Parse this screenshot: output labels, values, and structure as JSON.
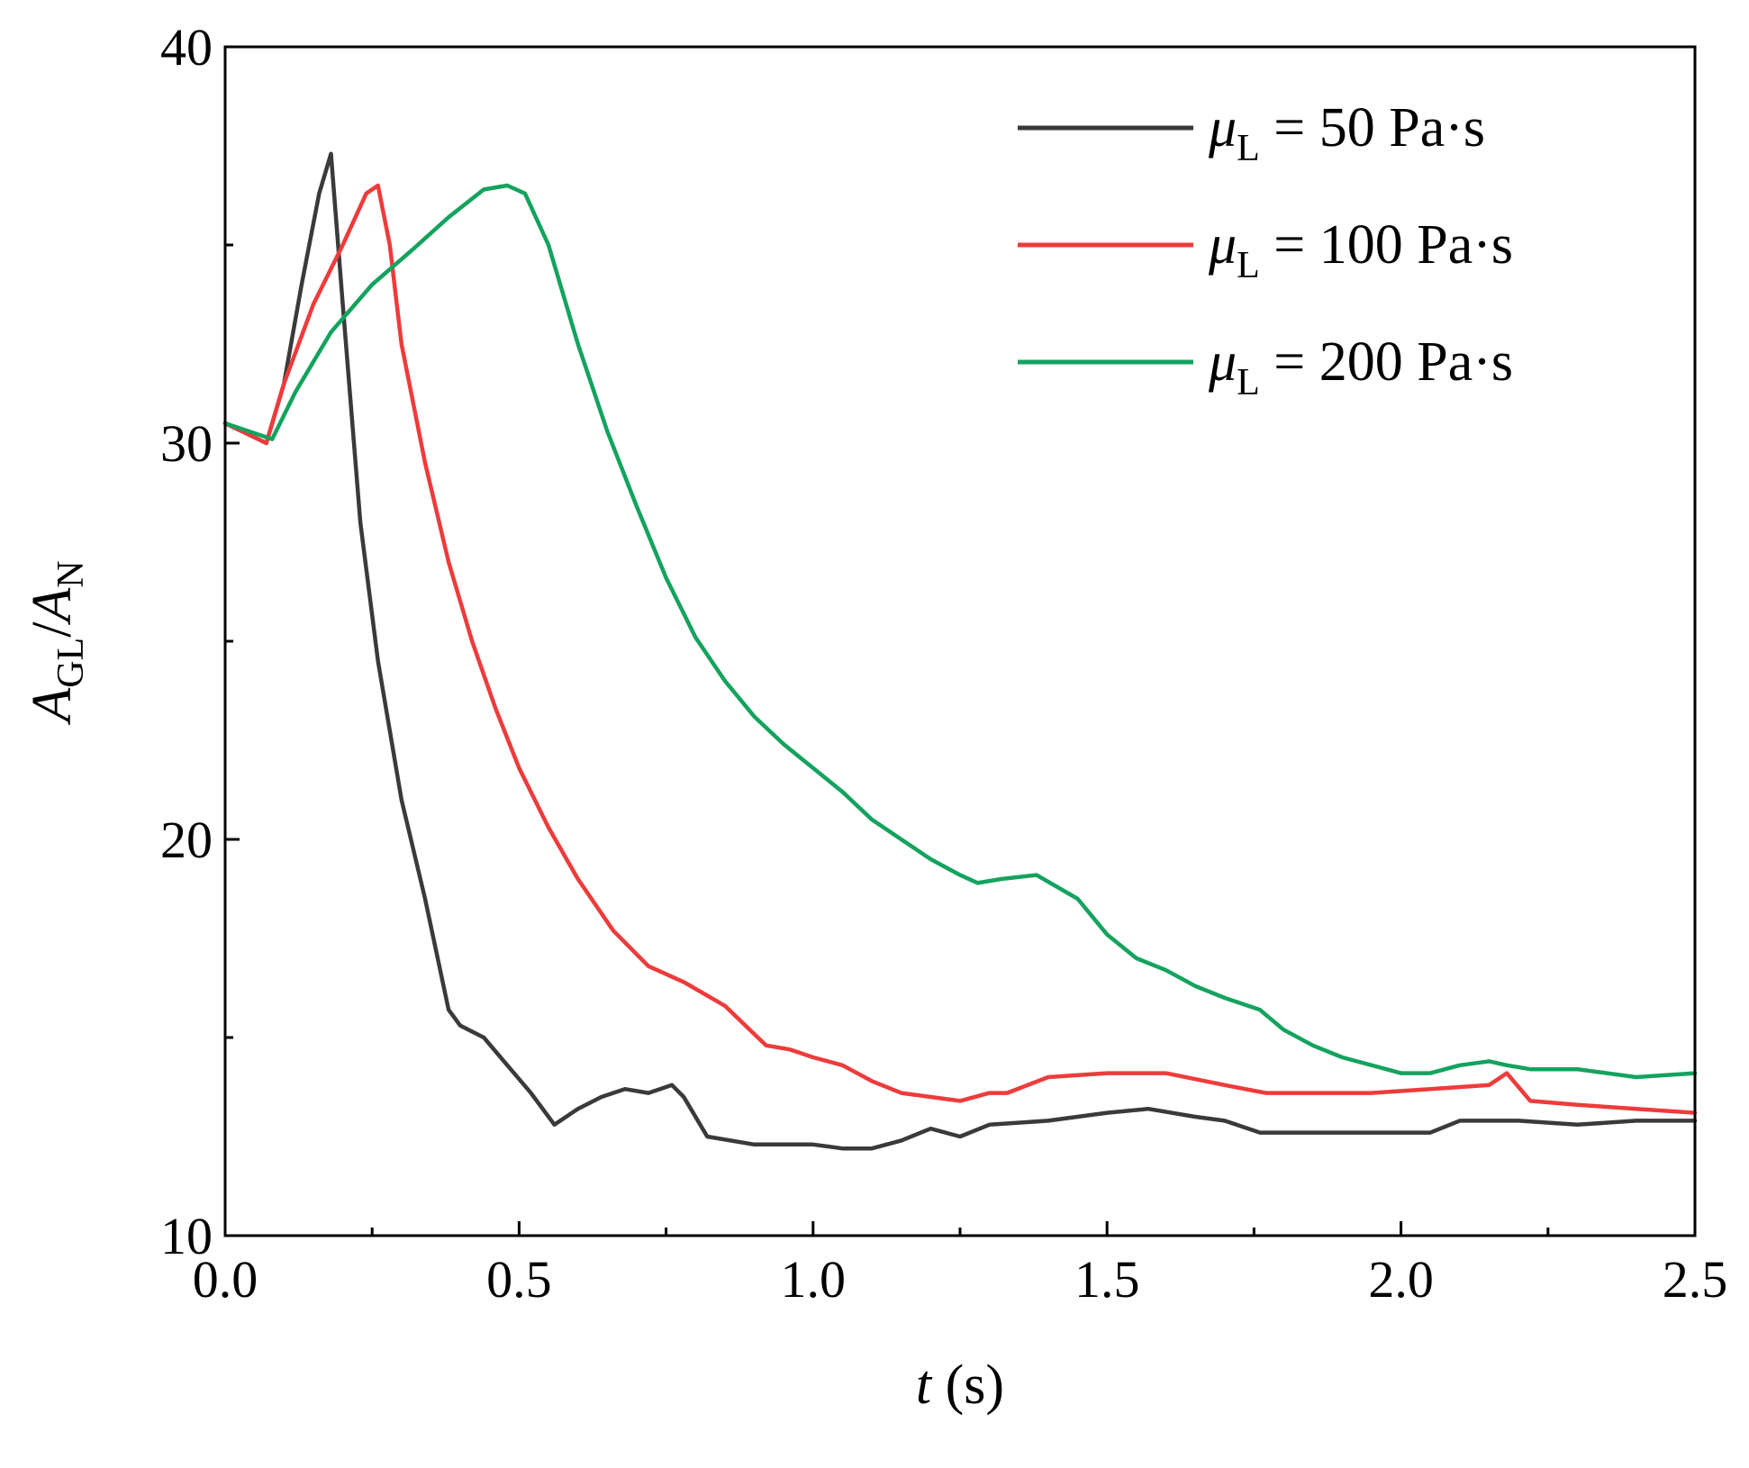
{
  "chart_data": {
    "type": "line",
    "title": "",
    "xlabel": {
      "var": "t",
      "unit": " (s)"
    },
    "ylabel": {
      "num_var": "A",
      "num_sub": "GL",
      "sep": "/",
      "den_var": "A",
      "den_sub": "N"
    },
    "xlim": [
      0,
      2.5
    ],
    "ylim": [
      10,
      40
    ],
    "x_ticks": [
      0,
      0.5,
      1.0,
      1.5,
      2.0,
      2.5
    ],
    "x_tick_labels": [
      "0.0",
      "0.5",
      "1.0",
      "1.5",
      "2.0",
      "2.5"
    ],
    "x_minor_ticks": [
      0.25,
      0.75,
      1.25,
      1.75,
      2.25
    ],
    "y_ticks": [
      10,
      20,
      30,
      40
    ],
    "y_tick_labels": [
      "10",
      "20",
      "30",
      "40"
    ],
    "y_minor_ticks": [
      15,
      25,
      35
    ],
    "legend_position": "top-right",
    "series": [
      {
        "name": "μL = 50 Pa·s",
        "legend": {
          "var": "μ",
          "sub": "L",
          "rest": " = 50 Pa·s"
        },
        "color": "#3a3a3a",
        "x": [
          0.0,
          0.07,
          0.1,
          0.13,
          0.16,
          0.18,
          0.2,
          0.23,
          0.26,
          0.3,
          0.34,
          0.38,
          0.4,
          0.44,
          0.48,
          0.52,
          0.56,
          0.6,
          0.64,
          0.68,
          0.72,
          0.76,
          0.78,
          0.82,
          0.9,
          1.0,
          1.05,
          1.1,
          1.15,
          1.2,
          1.25,
          1.3,
          1.4,
          1.5,
          1.57,
          1.65,
          1.7,
          1.76,
          1.85,
          1.95,
          2.0,
          2.05,
          2.1,
          2.2,
          2.3,
          2.4,
          2.5
        ],
        "y": [
          30.5,
          30.0,
          31.5,
          34.0,
          36.3,
          37.3,
          33.5,
          28.0,
          24.5,
          21.0,
          18.5,
          15.7,
          15.3,
          15.0,
          14.3,
          13.6,
          12.8,
          13.2,
          13.5,
          13.7,
          13.6,
          13.8,
          13.5,
          12.5,
          12.3,
          12.3,
          12.2,
          12.2,
          12.4,
          12.7,
          12.5,
          12.8,
          12.9,
          13.1,
          13.2,
          13.0,
          12.9,
          12.6,
          12.6,
          12.6,
          12.6,
          12.6,
          12.9,
          12.9,
          12.8,
          12.9,
          12.9
        ]
      },
      {
        "name": "μL = 100 Pa·s",
        "legend": {
          "var": "μ",
          "sub": "L",
          "rest": " = 100 Pa·s"
        },
        "color": "#ee3b3b",
        "x": [
          0.0,
          0.07,
          0.1,
          0.15,
          0.2,
          0.24,
          0.26,
          0.28,
          0.3,
          0.34,
          0.38,
          0.42,
          0.46,
          0.5,
          0.55,
          0.6,
          0.66,
          0.72,
          0.78,
          0.85,
          0.92,
          0.96,
          1.0,
          1.05,
          1.1,
          1.15,
          1.2,
          1.25,
          1.3,
          1.33,
          1.4,
          1.5,
          1.6,
          1.7,
          1.77,
          1.85,
          1.95,
          2.05,
          2.15,
          2.18,
          2.22,
          2.3,
          2.4,
          2.5
        ],
        "y": [
          30.5,
          30.0,
          31.5,
          33.5,
          35.0,
          36.3,
          36.5,
          35.0,
          32.5,
          29.5,
          27.0,
          25.0,
          23.3,
          21.8,
          20.3,
          19.0,
          17.7,
          16.8,
          16.4,
          15.8,
          14.8,
          14.7,
          14.5,
          14.3,
          13.9,
          13.6,
          13.5,
          13.4,
          13.6,
          13.6,
          14.0,
          14.1,
          14.1,
          13.8,
          13.6,
          13.6,
          13.6,
          13.7,
          13.8,
          14.1,
          13.4,
          13.3,
          13.2,
          13.1
        ]
      },
      {
        "name": "μL = 200 Pa·s",
        "legend": {
          "var": "μ",
          "sub": "L",
          "rest": " = 200 Pa·s"
        },
        "color": "#14a35e",
        "x": [
          0.0,
          0.08,
          0.12,
          0.18,
          0.25,
          0.32,
          0.38,
          0.44,
          0.48,
          0.51,
          0.55,
          0.6,
          0.65,
          0.7,
          0.75,
          0.8,
          0.85,
          0.9,
          0.95,
          1.0,
          1.05,
          1.1,
          1.15,
          1.2,
          1.25,
          1.28,
          1.32,
          1.38,
          1.45,
          1.5,
          1.55,
          1.6,
          1.65,
          1.7,
          1.76,
          1.8,
          1.85,
          1.9,
          1.95,
          2.0,
          2.05,
          2.1,
          2.15,
          2.18,
          2.22,
          2.3,
          2.4,
          2.5
        ],
        "y": [
          30.5,
          30.1,
          31.3,
          32.8,
          34.0,
          34.9,
          35.7,
          36.4,
          36.5,
          36.3,
          35.0,
          32.5,
          30.3,
          28.4,
          26.6,
          25.1,
          24.0,
          23.1,
          22.4,
          21.8,
          21.2,
          20.5,
          20.0,
          19.5,
          19.1,
          18.9,
          19.0,
          19.1,
          18.5,
          17.6,
          17.0,
          16.7,
          16.3,
          16.0,
          15.7,
          15.2,
          14.8,
          14.5,
          14.3,
          14.1,
          14.1,
          14.3,
          14.4,
          14.3,
          14.2,
          14.2,
          14.0,
          14.1
        ]
      }
    ]
  }
}
